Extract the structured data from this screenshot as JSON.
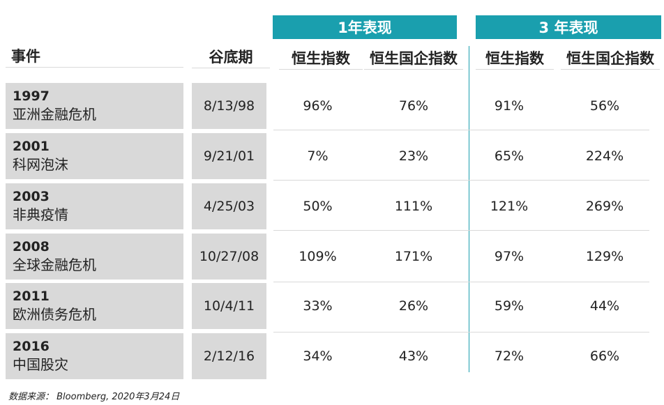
{
  "groups": {
    "one_year": "1年表现",
    "three_year": "3 年表现"
  },
  "headers": {
    "event": "事件",
    "trough_date": "谷底期",
    "hsi_1y": "恒生指数",
    "hscei_1y": "恒生国企指数",
    "hsi_3y": "恒生指数",
    "hscei_3y": "恒生国企指数"
  },
  "rows": [
    {
      "year": "1997",
      "name": "亚洲金融危机",
      "date": "8/13/98",
      "hsi_1y": "96%",
      "hscei_1y": "76%",
      "hsi_3y": "91%",
      "hscei_3y": "56%"
    },
    {
      "year": "2001",
      "name": "科网泡沫",
      "date": "9/21/01",
      "hsi_1y": "7%",
      "hscei_1y": "23%",
      "hsi_3y": "65%",
      "hscei_3y": "224%"
    },
    {
      "year": "2003",
      "name": "非典疫情",
      "date": "4/25/03",
      "hsi_1y": "50%",
      "hscei_1y": "111%",
      "hsi_3y": "121%",
      "hscei_3y": "269%"
    },
    {
      "year": "2008",
      "name": "全球金融危机",
      "date": "10/27/08",
      "hsi_1y": "109%",
      "hscei_1y": "171%",
      "hsi_3y": "97%",
      "hscei_3y": "129%"
    },
    {
      "year": "2011",
      "name": "欧洲债务危机",
      "date": "10/4/11",
      "hsi_1y": "33%",
      "hscei_1y": "26%",
      "hsi_3y": "59%",
      "hscei_3y": "44%"
    },
    {
      "year": "2016",
      "name": "中国股灾",
      "date": "2/12/16",
      "hsi_1y": "34%",
      "hscei_1y": "43%",
      "hsi_3y": "72%",
      "hscei_3y": "66%"
    }
  ],
  "footer": "数据来源： Bloomberg, 2020年3月24日",
  "colors": {
    "accent": "#1a9fae",
    "cell_gray": "#d9d9d9"
  }
}
